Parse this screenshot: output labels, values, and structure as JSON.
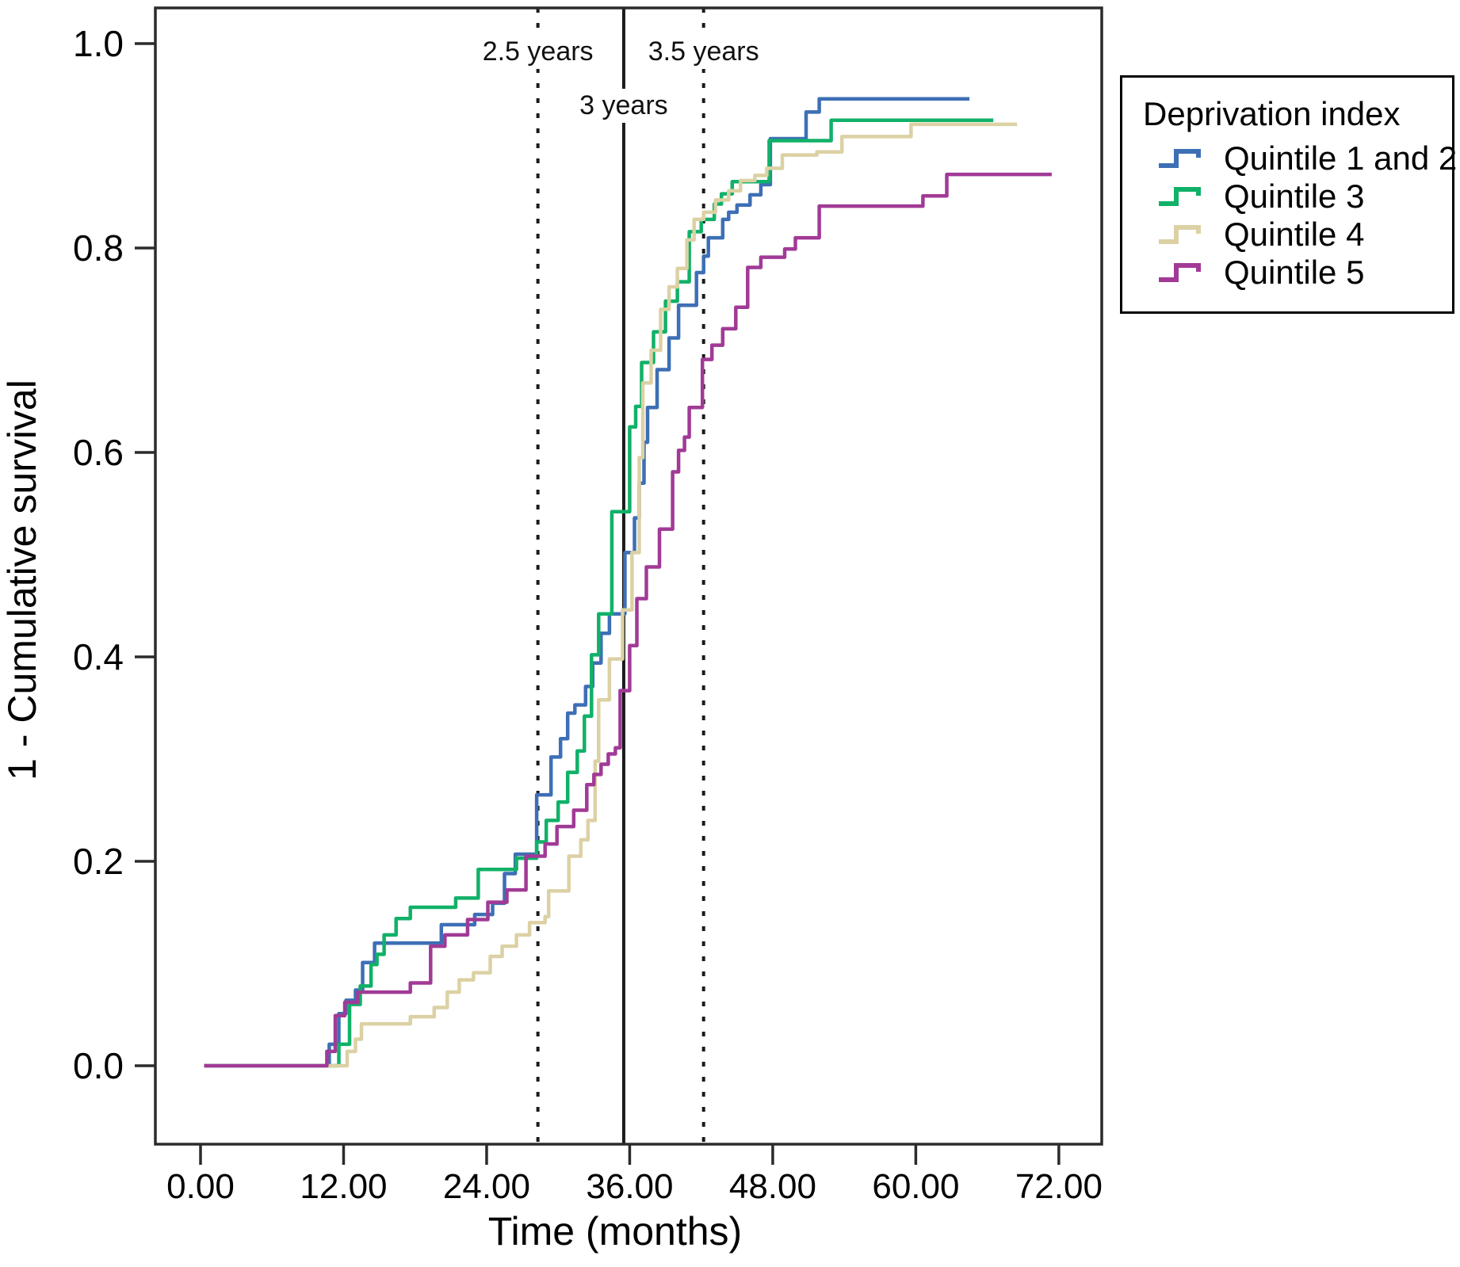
{
  "figure": {
    "background": "#ffffff"
  },
  "axes": {
    "xlabel": "Time (months)",
    "ylabel": "1 - Cumulative survival",
    "xtick_labels": [
      "0.00",
      "12.00",
      "24.00",
      "36.00",
      "48.00",
      "60.00",
      "72.00"
    ],
    "ytick_labels": [
      "0.0",
      "0.2",
      "0.4",
      "0.6",
      "0.8",
      "1.0"
    ]
  },
  "legend": {
    "title": "Deprivation index",
    "items": [
      {
        "label": "Quintile 1 and 2",
        "color": "#3d6fb5"
      },
      {
        "label": "Quintile 3",
        "color": "#10b168"
      },
      {
        "label": "Quintile 4",
        "color": "#dcd1a4"
      },
      {
        "label": "Quintile 5",
        "color": "#a13a96"
      }
    ]
  },
  "chart_data": {
    "type": "line",
    "subtype": "step-post-survival",
    "title": "",
    "xlabel": "Time (months)",
    "ylabel": "1 - Cumulative survival",
    "xlim": [
      -3.8,
      75.6
    ],
    "ylim": [
      -0.075,
      1.035
    ],
    "xticks": [
      0,
      12,
      24,
      36,
      48,
      60,
      72
    ],
    "yticks": [
      0.0,
      0.2,
      0.4,
      0.6,
      0.8,
      1.0
    ],
    "grid": false,
    "legend_position": "outside-top-right",
    "reference_lines": [
      {
        "label": "2.5 years",
        "years": 2.5,
        "x_months": 28.3,
        "style": "dashed"
      },
      {
        "label": "3 years",
        "years": 3.0,
        "x_months": 35.5,
        "style": "solid"
      },
      {
        "label": "3.5 years",
        "years": 3.5,
        "x_months": 42.2,
        "style": "dashed"
      }
    ],
    "series": [
      {
        "name": "Quintile 1 and 2",
        "color": "#3d6fb5",
        "end_month": 64.5,
        "points": [
          [
            0.3,
            0
          ],
          [
            10.8,
            0.021
          ],
          [
            11.6,
            0.051
          ],
          [
            12.2,
            0.064
          ],
          [
            13.0,
            0.074
          ],
          [
            13.6,
            0.101
          ],
          [
            14.6,
            0.12
          ],
          [
            20.2,
            0.138
          ],
          [
            23.0,
            0.148
          ],
          [
            24.5,
            0.159
          ],
          [
            25.5,
            0.188
          ],
          [
            26.4,
            0.207
          ],
          [
            28.2,
            0.265
          ],
          [
            29.4,
            0.302
          ],
          [
            30.2,
            0.32
          ],
          [
            30.8,
            0.345
          ],
          [
            31.4,
            0.353
          ],
          [
            32.3,
            0.371
          ],
          [
            32.9,
            0.394
          ],
          [
            33.6,
            0.423
          ],
          [
            34.3,
            0.442
          ],
          [
            35.6,
            0.502
          ],
          [
            36.4,
            0.536
          ],
          [
            36.8,
            0.57
          ],
          [
            37.2,
            0.61
          ],
          [
            37.5,
            0.644
          ],
          [
            38.3,
            0.681
          ],
          [
            39.3,
            0.712
          ],
          [
            40.1,
            0.744
          ],
          [
            41.6,
            0.776
          ],
          [
            42.2,
            0.792
          ],
          [
            42.6,
            0.81
          ],
          [
            43.8,
            0.828
          ],
          [
            44.3,
            0.835
          ],
          [
            45.0,
            0.842
          ],
          [
            46.1,
            0.852
          ],
          [
            47.0,
            0.862
          ],
          [
            47.8,
            0.907
          ],
          [
            50.8,
            0.933
          ],
          [
            51.9,
            0.946
          ]
        ]
      },
      {
        "name": "Quintile 3",
        "color": "#10b168",
        "end_month": 66.5,
        "points": [
          [
            0.3,
            0
          ],
          [
            11.6,
            0.021
          ],
          [
            12.5,
            0.06
          ],
          [
            13.4,
            0.078
          ],
          [
            14.3,
            0.099
          ],
          [
            14.8,
            0.109
          ],
          [
            15.4,
            0.128
          ],
          [
            16.4,
            0.144
          ],
          [
            17.6,
            0.155
          ],
          [
            21.4,
            0.164
          ],
          [
            23.3,
            0.192
          ],
          [
            26.5,
            0.203
          ],
          [
            28.2,
            0.219
          ],
          [
            29.0,
            0.24
          ],
          [
            30.0,
            0.258
          ],
          [
            30.8,
            0.287
          ],
          [
            31.6,
            0.308
          ],
          [
            32.2,
            0.342
          ],
          [
            32.8,
            0.402
          ],
          [
            33.4,
            0.442
          ],
          [
            34.5,
            0.542
          ],
          [
            36.0,
            0.625
          ],
          [
            36.5,
            0.645
          ],
          [
            37.0,
            0.688
          ],
          [
            38.0,
            0.718
          ],
          [
            39.0,
            0.748
          ],
          [
            40.0,
            0.767
          ],
          [
            41.0,
            0.816
          ],
          [
            42.0,
            0.828
          ],
          [
            43.1,
            0.843
          ],
          [
            43.7,
            0.853
          ],
          [
            44.6,
            0.865
          ],
          [
            47.7,
            0.905
          ],
          [
            52.9,
            0.925
          ]
        ]
      },
      {
        "name": "Quintile 4",
        "color": "#dcd1a4",
        "end_month": 68.5,
        "points": [
          [
            0.3,
            0
          ],
          [
            12.3,
            0.014
          ],
          [
            13.0,
            0.026
          ],
          [
            13.5,
            0.041
          ],
          [
            17.6,
            0.048
          ],
          [
            19.6,
            0.057
          ],
          [
            20.7,
            0.072
          ],
          [
            21.7,
            0.084
          ],
          [
            22.9,
            0.091
          ],
          [
            24.3,
            0.107
          ],
          [
            25.3,
            0.117
          ],
          [
            26.5,
            0.128
          ],
          [
            27.6,
            0.14
          ],
          [
            28.9,
            0.146
          ],
          [
            29.2,
            0.171
          ],
          [
            30.9,
            0.205
          ],
          [
            31.9,
            0.221
          ],
          [
            32.5,
            0.24
          ],
          [
            33.1,
            0.298
          ],
          [
            33.4,
            0.358
          ],
          [
            34.3,
            0.398
          ],
          [
            35.4,
            0.446
          ],
          [
            36.2,
            0.502
          ],
          [
            36.8,
            0.595
          ],
          [
            37.1,
            0.668
          ],
          [
            37.8,
            0.7
          ],
          [
            38.6,
            0.74
          ],
          [
            39.3,
            0.762
          ],
          [
            40.0,
            0.78
          ],
          [
            40.8,
            0.808
          ],
          [
            41.4,
            0.828
          ],
          [
            42.2,
            0.835
          ],
          [
            43.2,
            0.847
          ],
          [
            44.3,
            0.856
          ],
          [
            45.3,
            0.866
          ],
          [
            46.5,
            0.871
          ],
          [
            47.5,
            0.878
          ],
          [
            48.8,
            0.891
          ],
          [
            51.7,
            0.894
          ],
          [
            53.8,
            0.909
          ],
          [
            59.6,
            0.921
          ]
        ]
      },
      {
        "name": "Quintile 5",
        "color": "#a13a96",
        "end_month": 71.4,
        "points": [
          [
            0.3,
            0
          ],
          [
            10.6,
            0.014
          ],
          [
            11.3,
            0.049
          ],
          [
            12.1,
            0.062
          ],
          [
            13.2,
            0.072
          ],
          [
            17.6,
            0.081
          ],
          [
            19.3,
            0.117
          ],
          [
            20.5,
            0.128
          ],
          [
            22.4,
            0.143
          ],
          [
            24.1,
            0.16
          ],
          [
            25.7,
            0.172
          ],
          [
            27.3,
            0.205
          ],
          [
            28.9,
            0.217
          ],
          [
            29.9,
            0.234
          ],
          [
            31.3,
            0.25
          ],
          [
            32.4,
            0.275
          ],
          [
            33.0,
            0.285
          ],
          [
            33.6,
            0.295
          ],
          [
            34.2,
            0.305
          ],
          [
            34.8,
            0.311
          ],
          [
            35.2,
            0.367
          ],
          [
            36.0,
            0.411
          ],
          [
            36.6,
            0.457
          ],
          [
            37.4,
            0.488
          ],
          [
            38.5,
            0.525
          ],
          [
            39.6,
            0.581
          ],
          [
            40.1,
            0.602
          ],
          [
            40.6,
            0.615
          ],
          [
            41.0,
            0.644
          ],
          [
            42.1,
            0.691
          ],
          [
            42.9,
            0.705
          ],
          [
            43.8,
            0.721
          ],
          [
            44.9,
            0.742
          ],
          [
            45.9,
            0.781
          ],
          [
            47.0,
            0.791
          ],
          [
            49.0,
            0.799
          ],
          [
            49.9,
            0.81
          ],
          [
            51.9,
            0.841
          ],
          [
            60.6,
            0.851
          ],
          [
            62.6,
            0.872
          ]
        ]
      }
    ]
  }
}
